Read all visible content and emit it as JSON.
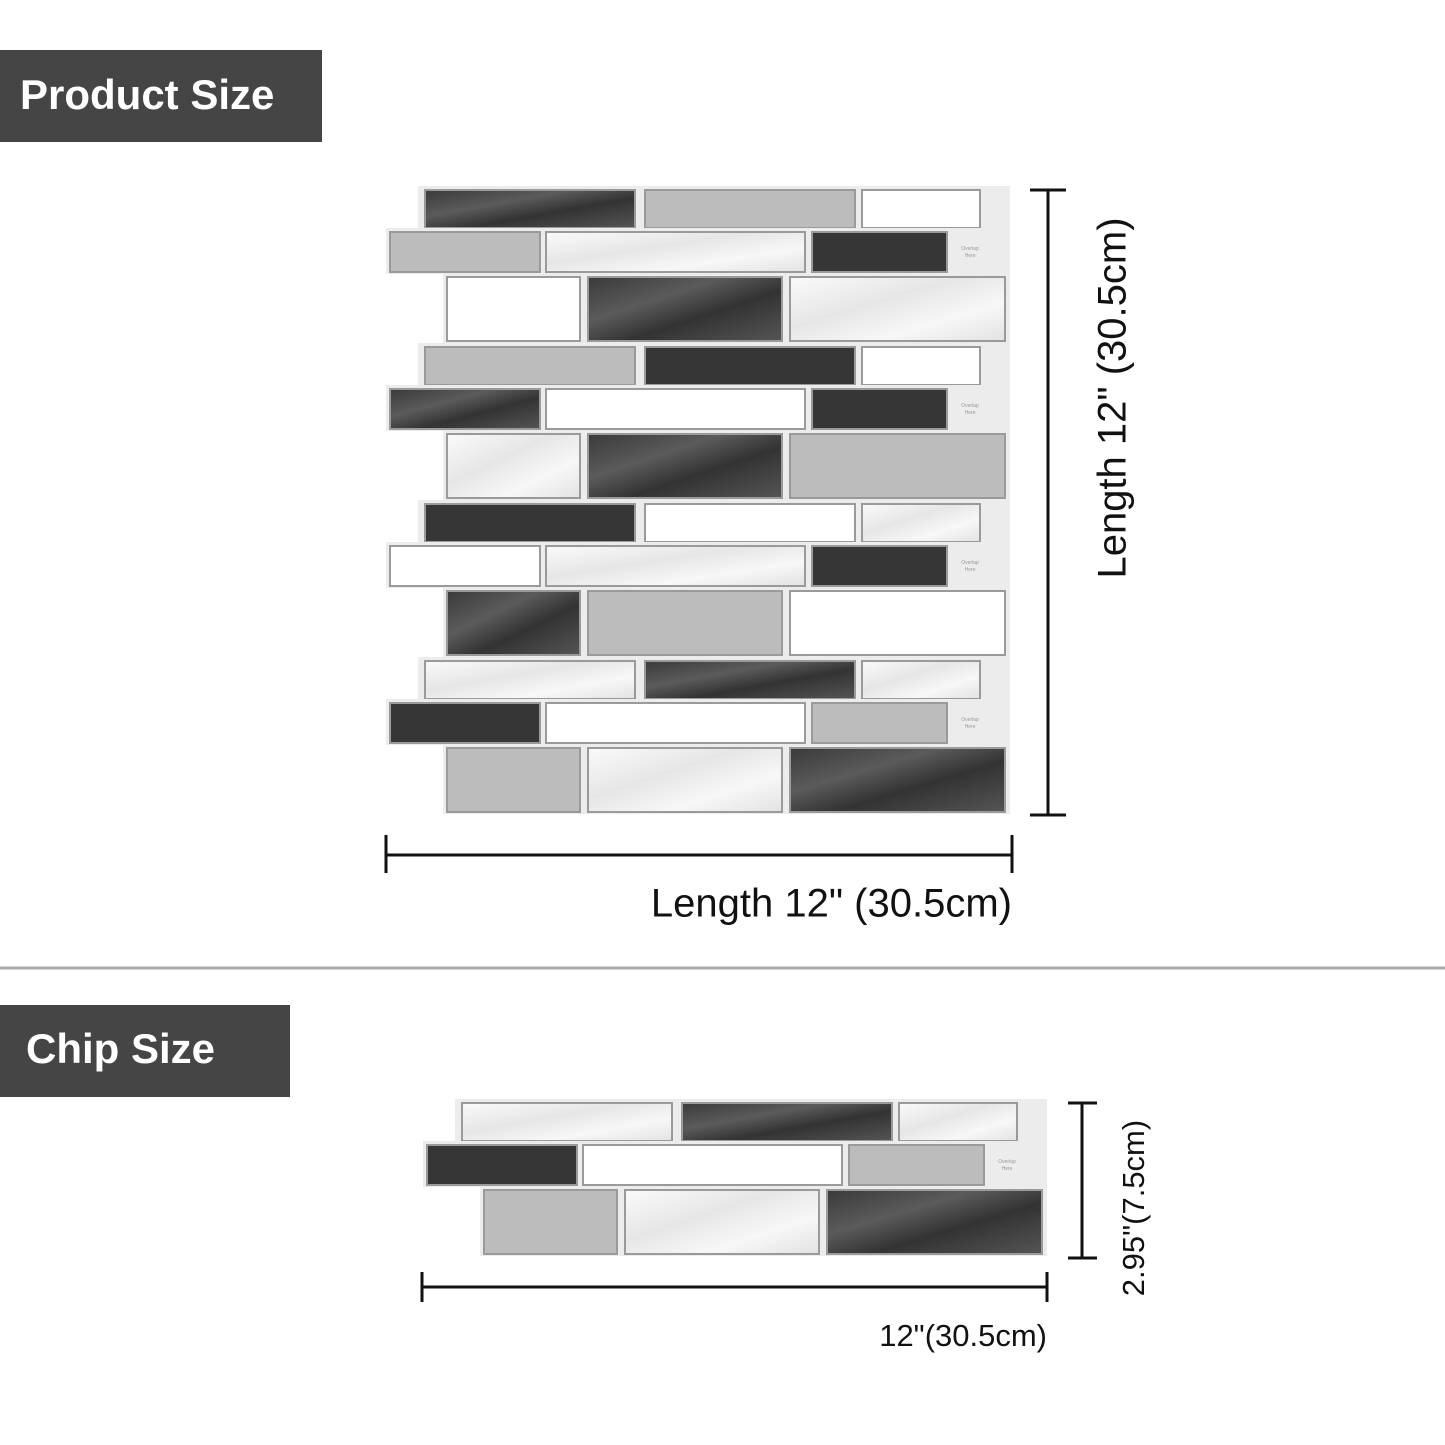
{
  "product_section": {
    "title": "Product Size",
    "height_label": "Length 12\" (30.5cm)",
    "width_label": "Length 12\" (30.5cm)"
  },
  "chip_section": {
    "title": "Chip Size",
    "height_label": "2.95\"(7.5cm)",
    "width_label": "12\"(30.5cm)"
  },
  "overlap_note": [
    "Overlap",
    "Here"
  ]
}
